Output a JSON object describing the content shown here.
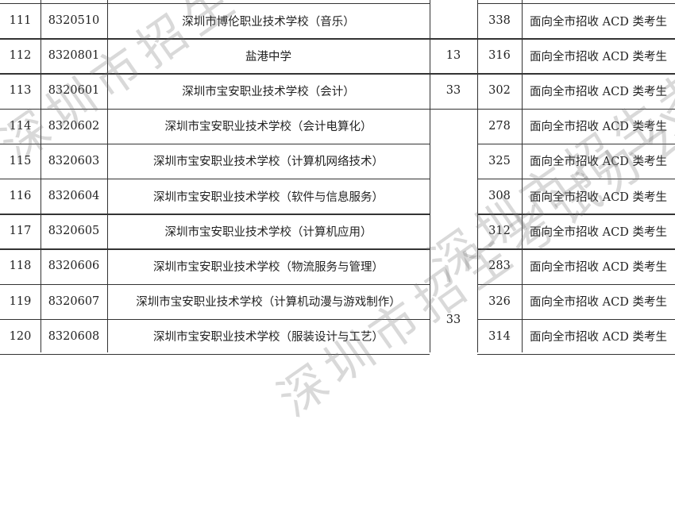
{
  "rows": [
    {
      "seq": "111",
      "code": "8320510",
      "school": "深圳市博伦职业技术学校（音乐）",
      "score": "338",
      "note": "面向全市招收 ACD 类考生"
    },
    {
      "seq": "112",
      "code": "8320801",
      "school": "盐港中学",
      "score": "316",
      "note": "面向全市招收 ACD 类考生"
    },
    {
      "seq": "113",
      "code": "8320601",
      "school": "深圳市宝安职业技术学校（会计）",
      "score": "302",
      "note": "面向全市招收 ACD 类考生"
    },
    {
      "seq": "114",
      "code": "8320602",
      "school": "深圳市宝安职业技术学校（会计电算化）",
      "score": "278",
      "note": "面向全市招收 ACD 类考生"
    },
    {
      "seq": "115",
      "code": "8320603",
      "school": "深圳市宝安职业技术学校（计算机网络技术）",
      "score": "325",
      "note": "面向全市招收 ACD 类考生"
    },
    {
      "seq": "116",
      "code": "8320604",
      "school": "深圳市宝安职业技术学校（软件与信息服务）",
      "score": "308",
      "note": "面向全市招收 ACD 类考生"
    },
    {
      "seq": "117",
      "code": "8320605",
      "school": "深圳市宝安职业技术学校（计算机应用）",
      "score": "312",
      "note": "面向全市招收 ACD 类考生"
    },
    {
      "seq": "118",
      "code": "8320606",
      "school": "深圳市宝安职业技术学校（物流服务与管理）",
      "score": "283",
      "note": "面向全市招收 ACD 类考生"
    },
    {
      "seq": "119",
      "code": "8320607",
      "school": "深圳市宝安职业技术学校（计算机动漫与游戏制作）",
      "score": "326",
      "note": "面向全市招收 ACD 类考生"
    },
    {
      "seq": "120",
      "code": "8320608",
      "school": "深圳市宝安职业技术学校（服装设计与工艺）",
      "score": "314",
      "note": "面向全市招收 ACD 类考生"
    }
  ],
  "counts": {
    "row112": "13",
    "row113": "33",
    "rows114_120": "33"
  },
  "watermark": "深圳市招生考试办公室"
}
